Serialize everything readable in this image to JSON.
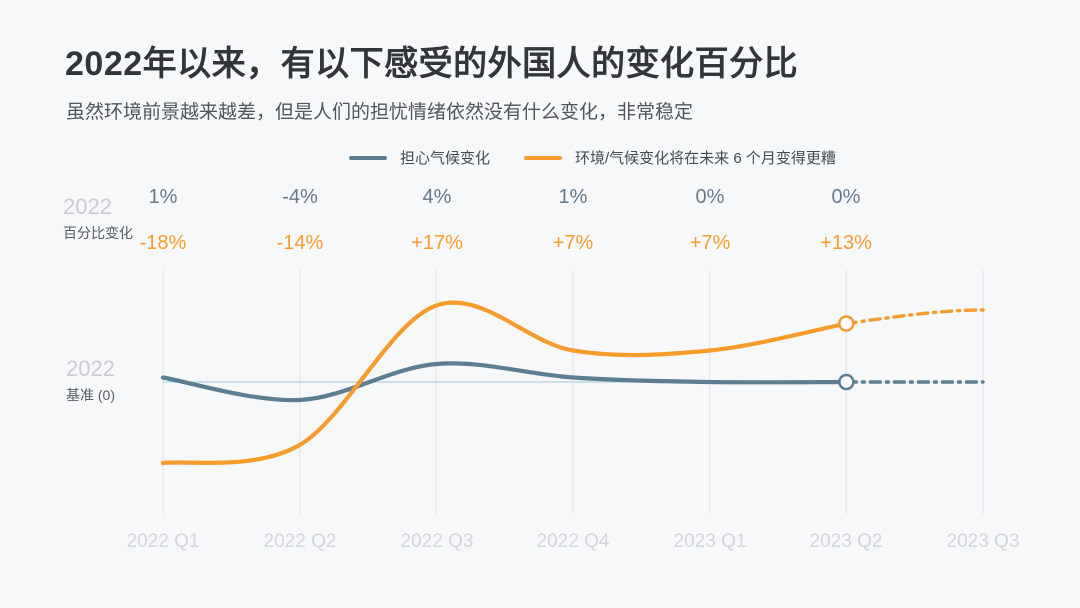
{
  "title": "2022年以来，有以下感受的外国人的变化百分比",
  "subtitle": "虽然环境前景越来越差，但是人们的担忧情绪依然没有什么变化，非常稳定",
  "legend": {
    "items": [
      {
        "label": "担心气候变化",
        "color": "#5b7e93"
      },
      {
        "label": "环境/气候变化将在未来 6 个月变得更糟",
        "color": "#f59c2d"
      }
    ]
  },
  "left_axis": {
    "change": {
      "year": "2022",
      "label": "百分比变化"
    },
    "baseline": {
      "year": "2022",
      "label": "基准 (0)"
    }
  },
  "columns": [
    {
      "concern": "1%",
      "worse": "-18%"
    },
    {
      "concern": "-4%",
      "worse": "-14%"
    },
    {
      "concern": "4%",
      "worse": "+17%"
    },
    {
      "concern": "1%",
      "worse": "+7%"
    },
    {
      "concern": "0%",
      "worse": "+7%"
    },
    {
      "concern": "0%",
      "worse": "+13%"
    }
  ],
  "x_labels": [
    "2022 Q1",
    "2022 Q2",
    "2022 Q3",
    "2022 Q4",
    "2023 Q1",
    "2023 Q2",
    "2023 Q3"
  ],
  "chart_data": {
    "type": "line",
    "title": "2022年以来，有以下感受的外国人的变化百分比",
    "subtitle": "虽然环境前景越来越差，但是人们的担忧情绪依然没有什么变化，非常稳定",
    "x": [
      "2022 Q1",
      "2022 Q2",
      "2022 Q3",
      "2022 Q4",
      "2023 Q1",
      "2023 Q2",
      "2023 Q3"
    ],
    "unit": "%",
    "ylabel": "百分比变化 (2022 基准 = 0)",
    "series": [
      {
        "name": "担心气候变化",
        "color": "#5b7e93",
        "values": [
          1,
          -4,
          4,
          1,
          0,
          0
        ],
        "value_labels": [
          "1%",
          "-4%",
          "4%",
          "1%",
          "0%",
          "0%"
        ],
        "forecast": {
          "x": "2023 Q3",
          "value": 0
        }
      },
      {
        "name": "环境/气候变化将在未来 6 个月变得更糟",
        "color": "#f59c2d",
        "values": [
          -18,
          -14,
          17,
          7,
          7,
          13
        ],
        "value_labels": [
          "-18%",
          "-14%",
          "+17%",
          "+7%",
          "+7%",
          "+13%"
        ],
        "forecast": {
          "x": "2023 Q3",
          "value": 16
        }
      }
    ],
    "baseline": {
      "label": "基准 (0)",
      "value": 0,
      "color": "#bdd6e1",
      "year": "2022"
    },
    "grid": "vertical-lines-per-quarter",
    "legend_position": "top",
    "style": {
      "smoothing": "spline",
      "forecast_segment": "dash-dot after 2023 Q2",
      "marker": "open circle at 2023 Q2"
    }
  },
  "colors": {
    "background": "#f7f8f9",
    "grid": "#e7e9ec",
    "baseline": "#bdd6e1",
    "title": "#32363a",
    "subtitle": "#50565c",
    "muted_year": "#c8ccd1",
    "x_axis_label": "#d2d6db",
    "series_blue": "#5b7e93",
    "series_orange": "#f59c2d"
  }
}
